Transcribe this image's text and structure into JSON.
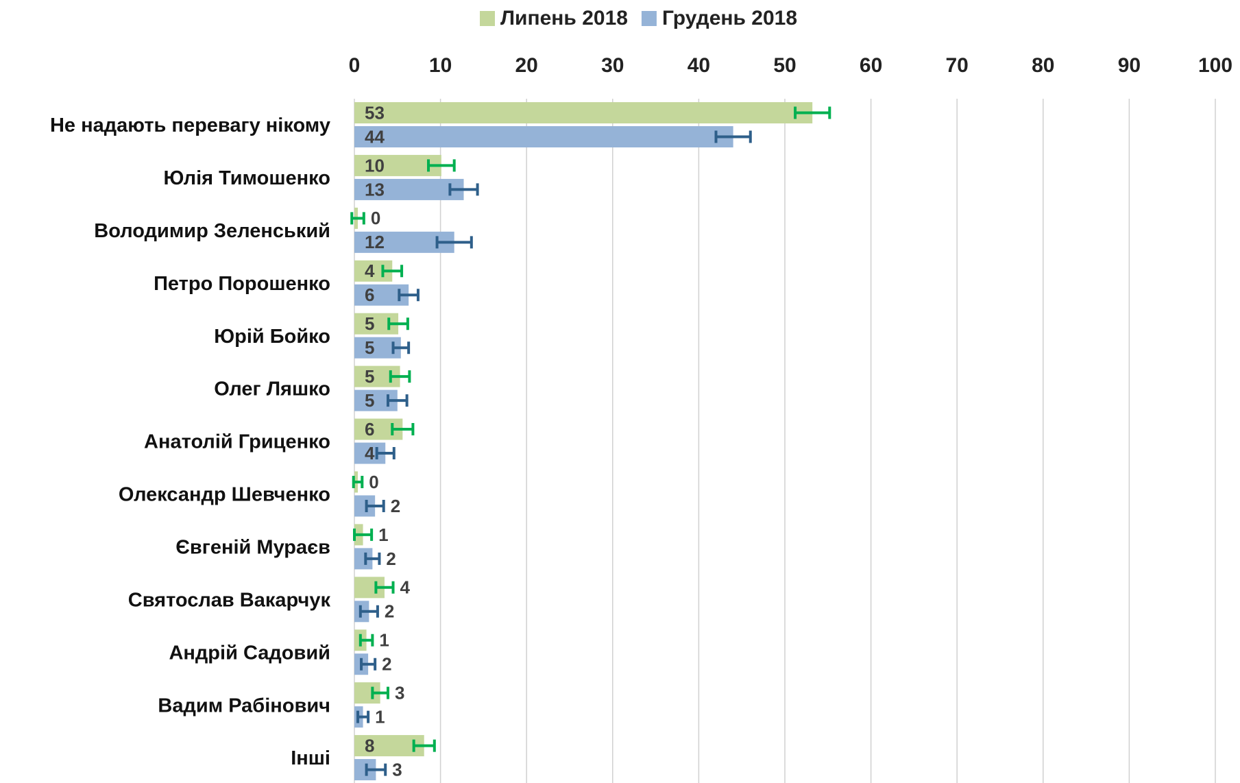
{
  "chart_data": {
    "type": "bar",
    "orientation": "horizontal",
    "categories": [
      "Не надають перевагу нікому",
      "Юлія Тимошенко",
      "Володимир Зеленський",
      "Петро Порошенко",
      "Юрій Бойко",
      "Олег Ляшко",
      "Анатолій Гриценко",
      "Олександр Шевченко",
      "Євгеній Мураєв",
      "Святослав  Вакарчук",
      "Андрій Садовий",
      "Вадим Рабінович",
      "Інші"
    ],
    "series": [
      {
        "name": "Липень 2018",
        "color": "#c4d79b",
        "error_color": "#00b050",
        "values": [
          53.2,
          10.1,
          0.4,
          4.4,
          5.1,
          5.3,
          5.6,
          0.4,
          1.0,
          3.5,
          1.4,
          3.0,
          8.1
        ],
        "value_labels": [
          "53",
          "10",
          "0",
          "4",
          "5",
          "5",
          "6",
          "0",
          "1",
          "4",
          "1",
          "3",
          "8"
        ],
        "errors": [
          2.0,
          1.5,
          0.7,
          1.1,
          1.1,
          1.1,
          1.2,
          0.5,
          1.0,
          1.0,
          0.7,
          0.9,
          1.2
        ]
      },
      {
        "name": "Грудень 2018",
        "color": "#95b3d7",
        "error_color": "#2e5f8a",
        "values": [
          44.0,
          12.7,
          11.6,
          6.3,
          5.4,
          5.0,
          3.6,
          2.4,
          2.1,
          1.7,
          1.6,
          1.0,
          2.5
        ],
        "value_labels": [
          "44",
          "13",
          "12",
          "6",
          "5",
          "5",
          "4",
          "2",
          "2",
          "2",
          "2",
          "1",
          "3"
        ],
        "errors": [
          2.0,
          1.6,
          2.0,
          1.1,
          0.9,
          1.1,
          1.0,
          1.0,
          0.8,
          1.0,
          0.8,
          0.6,
          1.1
        ]
      }
    ],
    "xlim": [
      0,
      100
    ],
    "xticks": [
      0,
      10,
      20,
      30,
      40,
      50,
      60,
      70,
      80,
      90,
      100
    ],
    "grid": true,
    "legend": "top"
  }
}
